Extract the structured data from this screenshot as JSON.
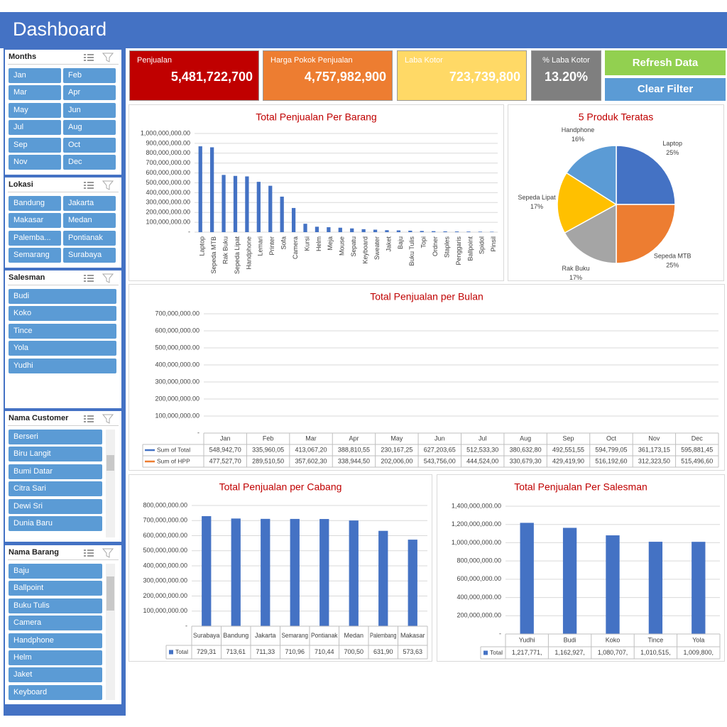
{
  "header": {
    "title": "Dashboard"
  },
  "slicers": [
    {
      "title": "Months",
      "items": [
        "Jan",
        "Feb",
        "Mar",
        "Apr",
        "May",
        "Jun",
        "Jul",
        "Aug",
        "Sep",
        "Oct",
        "Nov",
        "Dec"
      ]
    },
    {
      "title": "Lokasi",
      "items": [
        "Bandung",
        "Jakarta",
        "Makasar",
        "Medan",
        "Palemba...",
        "Pontianak",
        "Semarang",
        "Surabaya"
      ]
    },
    {
      "title": "Salesman",
      "items": [
        "Budi",
        "Koko",
        "Tince",
        "Yola",
        "Yudhi"
      ]
    },
    {
      "title": "Nama Customer",
      "items": [
        "Berseri",
        "Biru Langit",
        "Bumi Datar",
        "Citra Sari",
        "Dewi Sri",
        "Dunia Baru"
      ]
    },
    {
      "title": "Nama Barang",
      "items": [
        "Baju",
        "Ballpoint",
        "Buku Tulis",
        "Camera",
        "Handphone",
        "Helm",
        "Jaket",
        "Keyboard"
      ]
    }
  ],
  "kpis": [
    {
      "label": "Penjualan",
      "value": "5,481,722,700"
    },
    {
      "label": "Harga Pokok Penjualan",
      "value": "4,757,982,900"
    },
    {
      "label": "Laba Kotor",
      "value": "723,739,800"
    },
    {
      "label": "% Laba Kotor",
      "value": "13.20%"
    }
  ],
  "buttons": [
    "Refresh Data",
    "Clear Filter"
  ],
  "chart_data": [
    {
      "type": "bar",
      "title": "Total Penjualan Per Barang",
      "color": "#4472c4",
      "grid": true,
      "categories": [
        "Laptop",
        "Sepeda MTB",
        "Rak Buku",
        "Sepeda Lipat",
        "Handphone",
        "Lemari",
        "Printer",
        "Sofa",
        "Camera",
        "Kursi",
        "Helm",
        "Meja",
        "Mouse",
        "Sepatu",
        "Keyboard",
        "Sweater",
        "Jaket",
        "Baju",
        "Buku Tulis",
        "Topi",
        "Ordner",
        "Staples",
        "Penggaris",
        "Ballpoint",
        "Spidol",
        "Pinsil"
      ],
      "values": [
        870000000,
        860000000,
        580000000,
        570000000,
        565000000,
        510000000,
        470000000,
        360000000,
        245000000,
        85000000,
        55000000,
        50000000,
        45000000,
        38000000,
        30000000,
        25000000,
        20000000,
        18000000,
        15000000,
        12000000,
        10000000,
        8000000,
        7000000,
        6000000,
        5000000,
        4000000
      ],
      "ylim": [
        0,
        1000000000
      ],
      "yticks": [
        {
          "value": 0,
          "label": "-"
        },
        {
          "value": 100000000,
          "label": "100,000,000.00"
        },
        {
          "value": 200000000,
          "label": "200,000,000.00"
        },
        {
          "value": 300000000,
          "label": "300,000,000.00"
        },
        {
          "value": 400000000,
          "label": "400,000,000.00"
        },
        {
          "value": 500000000,
          "label": "500,000,000.00"
        },
        {
          "value": 600000000,
          "label": "600,000,000.00"
        },
        {
          "value": 700000000,
          "label": "700,000,000.00"
        },
        {
          "value": 800000000,
          "label": "800,000,000.00"
        },
        {
          "value": 900000000,
          "label": "900,000,000.00"
        },
        {
          "value": 1000000000,
          "label": "1,000,000,000.00"
        }
      ]
    },
    {
      "type": "pie",
      "title": "5 Produk Teratas",
      "categories": [
        "Laptop",
        "Sepeda MTB",
        "Rak Buku",
        "Sepeda Lipat",
        "Handphone"
      ],
      "values": [
        25,
        25,
        17,
        17,
        16
      ],
      "value_labels": [
        "25%",
        "25%",
        "17%",
        "17%",
        "16%"
      ],
      "colors": [
        "#4472c4",
        "#ed7d31",
        "#a5a5a5",
        "#ffc000",
        "#5b9bd5"
      ]
    },
    {
      "type": "line",
      "title": "Total Penjualan per Bulan",
      "grid": true,
      "data_table": true,
      "categories": [
        "Jan",
        "Feb",
        "Mar",
        "Apr",
        "May",
        "Jun",
        "Jul",
        "Aug",
        "Sep",
        "Oct",
        "Nov",
        "Dec"
      ],
      "series": [
        {
          "name": "Sum of Total",
          "color": "#4472c4",
          "values": [
            548942700,
            335960050,
            413067200,
            388810550,
            230167250,
            627203650,
            512533300,
            380632800,
            492551550,
            594799050,
            361173150,
            595881450
          ],
          "value_labels": [
            "548,942,70",
            "335,960,05",
            "413,067,20",
            "388,810,55",
            "230,167,25",
            "627,203,65",
            "512,533,30",
            "380,632,80",
            "492,551,55",
            "594,799,05",
            "361,173,15",
            "595,881,45"
          ]
        },
        {
          "name": "Sum of HPP",
          "color": "#ed7d31",
          "values": [
            477527700,
            289510500,
            357602300,
            338944500,
            202006000,
            543756000,
            444524000,
            330679300,
            429419900,
            516192600,
            312323500,
            515496600
          ],
          "value_labels": [
            "477,527,70",
            "289,510,50",
            "357,602,30",
            "338,944,50",
            "202,006,00",
            "543,756,00",
            "444,524,00",
            "330,679,30",
            "429,419,90",
            "516,192,60",
            "312,323,50",
            "515,496,60"
          ]
        }
      ],
      "ylim": [
        0,
        700000000
      ],
      "yticks": [
        {
          "value": 0,
          "label": "-"
        },
        {
          "value": 100000000,
          "label": "100,000,000.00"
        },
        {
          "value": 200000000,
          "label": "200,000,000.00"
        },
        {
          "value": 300000000,
          "label": "300,000,000.00"
        },
        {
          "value": 400000000,
          "label": "400,000,000.00"
        },
        {
          "value": 500000000,
          "label": "500,000,000.00"
        },
        {
          "value": 600000000,
          "label": "600,000,000.00"
        },
        {
          "value": 700000000,
          "label": "700,000,000.00"
        }
      ]
    },
    {
      "type": "bar",
      "title": "Total Penjualan per Cabang",
      "grid": true,
      "data_table": true,
      "categories": [
        "Surabaya",
        "Bandung",
        "Jakarta",
        "Semarang",
        "Pontianak",
        "Medan",
        "Palembang",
        "Makasar"
      ],
      "series": [
        {
          "name": "Total",
          "color": "#4472c4",
          "values": [
            729310000,
            713610000,
            711330000,
            710960000,
            710440000,
            700500000,
            631900000,
            573630000
          ],
          "value_labels": [
            "729,31",
            "713,61",
            "711,33",
            "710,96",
            "710,44",
            "700,50",
            "631,90",
            "573,63"
          ]
        }
      ],
      "ylim": [
        0,
        800000000
      ],
      "yticks": [
        {
          "value": 0,
          "label": "-"
        },
        {
          "value": 100000000,
          "label": "100,000,000.00"
        },
        {
          "value": 200000000,
          "label": "200,000,000.00"
        },
        {
          "value": 300000000,
          "label": "300,000,000.00"
        },
        {
          "value": 400000000,
          "label": "400,000,000.00"
        },
        {
          "value": 500000000,
          "label": "500,000,000.00"
        },
        {
          "value": 600000000,
          "label": "600,000,000.00"
        },
        {
          "value": 700000000,
          "label": "700,000,000.00"
        },
        {
          "value": 800000000,
          "label": "800,000,000.00"
        }
      ]
    },
    {
      "type": "bar",
      "title": "Total Penjualan Per Salesman",
      "grid": true,
      "data_table": true,
      "categories": [
        "Yudhi",
        "Budi",
        "Koko",
        "Tince",
        "Yola"
      ],
      "series": [
        {
          "name": "Total",
          "color": "#4472c4",
          "values": [
            1217771000,
            1162927000,
            1080707000,
            1010515000,
            1009800000
          ],
          "value_labels": [
            "1,217,771,",
            "1,162,927,",
            "1,080,707,",
            "1,010,515,",
            "1,009,800,"
          ]
        }
      ],
      "ylim": [
        0,
        1400000000
      ],
      "yticks": [
        {
          "value": 0,
          "label": "-"
        },
        {
          "value": 200000000,
          "label": "200,000,000.00"
        },
        {
          "value": 400000000,
          "label": "400,000,000.00"
        },
        {
          "value": 600000000,
          "label": "600,000,000.00"
        },
        {
          "value": 800000000,
          "label": "800,000,000.00"
        },
        {
          "value": 1000000000,
          "label": "1,000,000,000.00"
        },
        {
          "value": 1200000000,
          "label": "1,200,000,000.00"
        },
        {
          "value": 1400000000,
          "label": "1,400,000,000.00"
        }
      ]
    }
  ]
}
